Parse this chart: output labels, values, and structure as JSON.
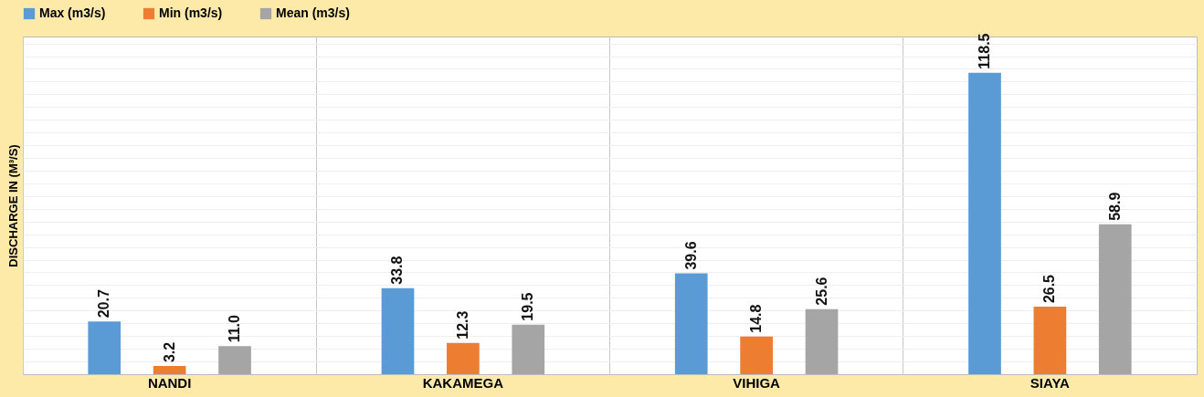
{
  "chart_data": {
    "type": "bar",
    "ylabel": "DISCHARGE IN (M³/S)",
    "categories": [
      "NANDI",
      "KAKAMEGA",
      "VIHIGA",
      "SIAYA"
    ],
    "series": [
      {
        "name": "Max (m3/s)",
        "color": "#5b9bd5",
        "values": [
          20.7,
          33.8,
          39.6,
          118.5
        ]
      },
      {
        "name": "Min (m3/s)",
        "color": "#ed7d31",
        "values": [
          3.2,
          12.3,
          14.8,
          26.5
        ]
      },
      {
        "name": "Mean (m3/s)",
        "color": "#a5a5a5",
        "values": [
          11.0,
          19.5,
          25.6,
          58.9
        ],
        "value_labels": [
          "11.0",
          "19.5",
          "25.6",
          "58.9"
        ]
      }
    ],
    "data_labels": true,
    "grid": true,
    "legend": "top",
    "tick_labels": "x"
  }
}
